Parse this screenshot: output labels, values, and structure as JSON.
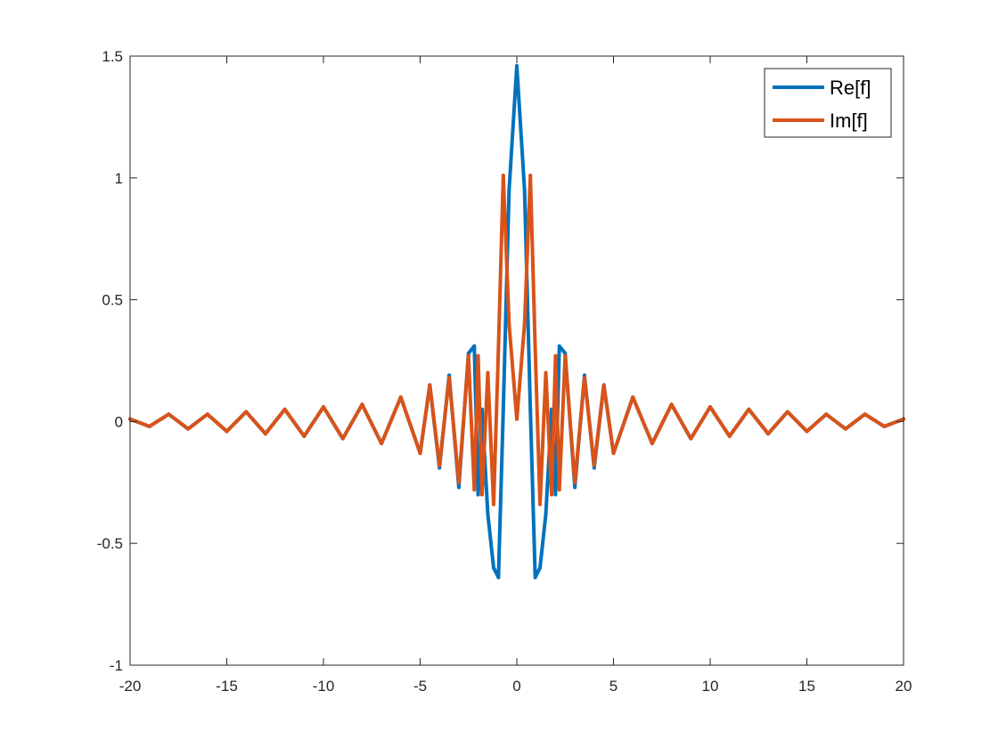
{
  "chart_data": {
    "type": "line",
    "title": "",
    "xlabel": "",
    "ylabel": "",
    "xlim": [
      -20,
      20
    ],
    "ylim": [
      -1,
      1.5
    ],
    "xticks": [
      -20,
      -15,
      -10,
      -5,
      0,
      5,
      10,
      15,
      20
    ],
    "xtick_labels": [
      "-20",
      "-15",
      "-10",
      "-5",
      "0",
      "5",
      "10",
      "15",
      "20"
    ],
    "yticks": [
      -1,
      -0.5,
      0,
      0.5,
      1,
      1.5
    ],
    "ytick_labels": [
      "-1",
      "-0.5",
      "0",
      "0.5",
      "1",
      "1.5"
    ],
    "grid": false,
    "legend_position": "top-right",
    "series": [
      {
        "name": "Re[f]",
        "color": "#0072BD",
        "x": [
          -20,
          -19,
          -18,
          -17,
          -16,
          -15,
          -14,
          -13,
          -12,
          -11,
          -10,
          -9,
          -8,
          -7,
          -6,
          -5,
          -4.5,
          -4,
          -3.5,
          -3,
          -2.5,
          -2.2,
          -2,
          -1.8,
          -1.5,
          -1.2,
          -0.95,
          -0.7,
          -0.4,
          0,
          0.4,
          0.7,
          0.95,
          1.2,
          1.5,
          1.8,
          2,
          2.2,
          2.5,
          3,
          3.5,
          4,
          4.5,
          5,
          6,
          7,
          8,
          9,
          10,
          11,
          12,
          13,
          14,
          15,
          16,
          17,
          18,
          19,
          20
        ],
        "y": [
          0.01,
          -0.02,
          0.03,
          -0.03,
          0.03,
          -0.04,
          0.04,
          -0.05,
          0.05,
          -0.06,
          0.06,
          -0.07,
          0.07,
          -0.09,
          0.1,
          -0.13,
          0.15,
          -0.19,
          0.19,
          -0.27,
          0.28,
          0.31,
          -0.3,
          0.05,
          -0.38,
          -0.6,
          -0.64,
          0.05,
          0.95,
          1.46,
          0.95,
          0.05,
          -0.64,
          -0.6,
          -0.38,
          0.05,
          -0.3,
          0.31,
          0.28,
          -0.27,
          0.19,
          -0.19,
          0.15,
          -0.13,
          0.1,
          -0.09,
          0.07,
          -0.07,
          0.06,
          -0.06,
          0.05,
          -0.05,
          0.04,
          -0.04,
          0.03,
          -0.03,
          0.03,
          -0.02,
          0.01
        ]
      },
      {
        "name": "Im[f]",
        "color": "#D95319",
        "x": [
          -20,
          -19,
          -18,
          -17,
          -16,
          -15,
          -14,
          -13,
          -12,
          -11,
          -10,
          -9,
          -8,
          -7,
          -6,
          -5,
          -4.5,
          -4,
          -3.5,
          -3,
          -2.5,
          -2.2,
          -2,
          -1.8,
          -1.5,
          -1.2,
          -0.95,
          -0.7,
          -0.4,
          0,
          0.4,
          0.7,
          0.95,
          1.2,
          1.5,
          1.8,
          2,
          2.2,
          2.5,
          3,
          3.5,
          4,
          4.5,
          5,
          6,
          7,
          8,
          9,
          10,
          11,
          12,
          13,
          14,
          15,
          16,
          17,
          18,
          19,
          20
        ],
        "y": [
          0.01,
          -0.02,
          0.03,
          -0.03,
          0.03,
          -0.04,
          0.04,
          -0.05,
          0.05,
          -0.06,
          0.06,
          -0.07,
          0.07,
          -0.09,
          0.1,
          -0.13,
          0.15,
          -0.18,
          0.18,
          -0.25,
          0.27,
          -0.28,
          0.27,
          -0.3,
          0.2,
          -0.34,
          0.3,
          1.01,
          0.4,
          0.01,
          0.4,
          1.01,
          0.3,
          -0.34,
          0.2,
          -0.3,
          0.27,
          -0.28,
          0.27,
          -0.25,
          0.18,
          -0.18,
          0.15,
          -0.13,
          0.1,
          -0.09,
          0.07,
          -0.07,
          0.06,
          -0.06,
          0.05,
          -0.05,
          0.04,
          -0.04,
          0.03,
          -0.03,
          0.03,
          -0.02,
          0.01
        ]
      }
    ]
  }
}
